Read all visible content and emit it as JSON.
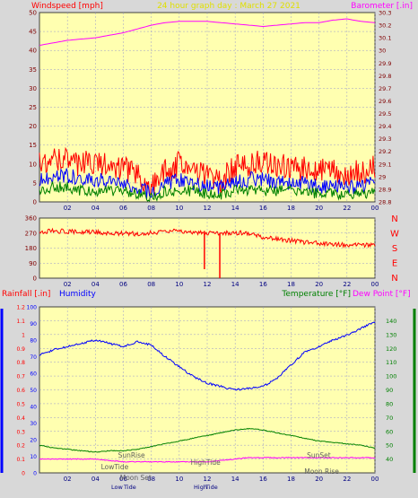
{
  "chart_data": [
    {
      "type": "line",
      "title": "24 hour graph day : March 27 2021",
      "left_axis": {
        "label": "Windspeed [mph]",
        "ylim": [
          0,
          50
        ],
        "ticks": [
          0,
          5,
          10,
          15,
          20,
          25,
          30,
          35,
          40,
          45,
          50
        ]
      },
      "right_axis": {
        "label": "Barometer [.in]",
        "ylim": [
          28.8,
          30.3
        ],
        "ticks": [
          "28.8",
          "28.9",
          "29",
          "29.1",
          "29.2",
          "29.3",
          "29.4",
          "29.5",
          "29.6",
          "29.7",
          "29.8",
          "29.9",
          "30",
          "30.1",
          "30.2",
          "30.3"
        ]
      },
      "x_ticks": [
        "02",
        "04",
        "06",
        "08",
        "10",
        "12",
        "14",
        "16",
        "18",
        "20",
        "22",
        "00"
      ],
      "series": [
        {
          "name": "Barometer",
          "color": "#FF00FF",
          "x": [
            0,
            1,
            2,
            3,
            4,
            5,
            6,
            7,
            8,
            9,
            10,
            11,
            12,
            13,
            14,
            15,
            16,
            17,
            18,
            19,
            20,
            21,
            22,
            23,
            24
          ],
          "y": [
            30.04,
            30.06,
            30.08,
            30.09,
            30.1,
            30.12,
            30.14,
            30.17,
            30.2,
            30.22,
            30.23,
            30.23,
            30.23,
            30.22,
            30.21,
            30.2,
            30.19,
            30.2,
            30.21,
            30.22,
            30.22,
            30.24,
            30.25,
            30.23,
            30.22
          ]
        },
        {
          "name": "Wind gust",
          "color": "#FF0000",
          "x": [
            0,
            1,
            2,
            3,
            4,
            5,
            6,
            7,
            8,
            9,
            10,
            11,
            12,
            13,
            14,
            15,
            16,
            17,
            18,
            19,
            20,
            21,
            22,
            23,
            24
          ],
          "y": [
            10,
            12,
            11,
            10,
            11,
            10,
            9,
            7,
            4,
            8,
            10,
            9,
            7,
            6,
            9,
            10,
            11,
            10,
            9,
            9,
            8,
            8,
            7,
            8,
            9
          ]
        },
        {
          "name": "Wind average",
          "color": "#0000FF",
          "x": [
            0,
            1,
            2,
            3,
            4,
            5,
            6,
            7,
            8,
            9,
            10,
            11,
            12,
            13,
            14,
            15,
            16,
            17,
            18,
            19,
            20,
            21,
            22,
            23,
            24
          ],
          "y": [
            6,
            7,
            7,
            6,
            6,
            5,
            5,
            4,
            2,
            5,
            6,
            5,
            4,
            4,
            5,
            6,
            6,
            5,
            5,
            5,
            4,
            4,
            4,
            4,
            5
          ]
        },
        {
          "name": "Wind speed",
          "color": "#008000",
          "x": [
            0,
            1,
            2,
            3,
            4,
            5,
            6,
            7,
            8,
            9,
            10,
            11,
            12,
            13,
            14,
            15,
            16,
            17,
            18,
            19,
            20,
            21,
            22,
            23,
            24
          ],
          "y": [
            3,
            4,
            4,
            3,
            3,
            3,
            3,
            2,
            1,
            3,
            3,
            3,
            2,
            2,
            3,
            3,
            3,
            3,
            3,
            3,
            2,
            2,
            2,
            2,
            3
          ]
        }
      ]
    },
    {
      "type": "line",
      "left_axis": {
        "ylim": [
          0,
          360
        ],
        "ticks": [
          0,
          90,
          180,
          270,
          360
        ]
      },
      "compass_labels": [
        "N",
        "W",
        "S",
        "E",
        "N"
      ],
      "x_ticks": [
        "02",
        "04",
        "06",
        "08",
        "10",
        "12",
        "14",
        "16",
        "18",
        "20",
        "22",
        "00"
      ],
      "series": [
        {
          "name": "Wind direction",
          "color": "#FF0000",
          "x": [
            0,
            1,
            2,
            3,
            4,
            5,
            6,
            7,
            8,
            9,
            10,
            11,
            12,
            13,
            14,
            15,
            16,
            17,
            18,
            19,
            20,
            21,
            22,
            23,
            24
          ],
          "y": [
            278,
            282,
            280,
            276,
            275,
            272,
            268,
            266,
            272,
            280,
            282,
            276,
            270,
            268,
            272,
            270,
            245,
            235,
            225,
            215,
            210,
            205,
            200,
            198,
            200
          ]
        }
      ]
    },
    {
      "type": "line",
      "left_axis": {
        "label": "Rainfall [.in]",
        "ylim": [
          0,
          1.2
        ],
        "ticks": [
          "0",
          "0.1",
          "0.2",
          "0.3",
          "0.4",
          "0.5",
          "0.6",
          "0.7",
          "0.8",
          "0.9",
          "1",
          "1.1",
          "1.2"
        ]
      },
      "left_axis_2": {
        "label": "Humidity",
        "ylim": [
          0,
          100
        ],
        "ticks": [
          "0",
          "10",
          "20",
          "30",
          "40",
          "50",
          "60",
          "70",
          "80",
          "90",
          "100"
        ]
      },
      "right_axis": {
        "label": "Temperature [°F]",
        "label2": "Dew Point [°F]",
        "ylim": [
          30,
          150
        ],
        "ticks": [
          "40",
          "50",
          "60",
          "70",
          "80",
          "90",
          "100",
          "110",
          "120",
          "130",
          "140"
        ]
      },
      "x_ticks": [
        "02",
        "04",
        "06",
        "08",
        "10",
        "12",
        "14",
        "16",
        "18",
        "20",
        "22",
        "00"
      ],
      "annotations": [
        {
          "text": "SunRise",
          "x": 6.2
        },
        {
          "text": "LowTide",
          "x": 5.0
        },
        {
          "text": "Moon Set",
          "x": 6.5
        },
        {
          "text": "HighTide",
          "x": 11.5
        },
        {
          "text": "SunSet",
          "x": 19.6
        },
        {
          "text": "Moon Rise",
          "x": 19.8
        }
      ],
      "bottom_labels": [
        "Low",
        "Tide",
        "High",
        "Tide"
      ],
      "series": [
        {
          "name": "Humidity",
          "color": "#0000FF",
          "x": [
            0,
            1,
            2,
            3,
            4,
            5,
            6,
            7,
            8,
            9,
            10,
            11,
            12,
            13,
            14,
            15,
            16,
            17,
            18,
            19,
            20,
            21,
            22,
            23,
            24
          ],
          "y": [
            71,
            74,
            76,
            78,
            80,
            78,
            76,
            79,
            77,
            70,
            64,
            58,
            54,
            52,
            50,
            51,
            52,
            57,
            65,
            73,
            76,
            80,
            83,
            87,
            91
          ]
        },
        {
          "name": "Temperature",
          "color": "#008000",
          "x": [
            0,
            1,
            2,
            3,
            4,
            5,
            6,
            7,
            8,
            9,
            10,
            11,
            12,
            13,
            14,
            15,
            16,
            17,
            18,
            19,
            20,
            21,
            22,
            23,
            24
          ],
          "y": [
            50,
            48,
            47,
            46,
            45,
            46,
            46,
            47,
            49,
            51,
            53,
            55,
            57,
            59,
            61,
            62,
            61,
            59,
            57,
            55,
            53,
            52,
            51,
            50,
            48
          ]
        },
        {
          "name": "Dew Point",
          "color": "#FF00FF",
          "x": [
            0,
            1,
            2,
            3,
            4,
            5,
            6,
            7,
            8,
            9,
            10,
            11,
            12,
            13,
            14,
            15,
            16,
            17,
            18,
            19,
            20,
            21,
            22,
            23,
            24
          ],
          "y": [
            40,
            40,
            40,
            40,
            40,
            39,
            38,
            38,
            38,
            38,
            38,
            38,
            38,
            39,
            40,
            41,
            41,
            41,
            41,
            41,
            41,
            41,
            41,
            41,
            41
          ]
        }
      ]
    }
  ]
}
